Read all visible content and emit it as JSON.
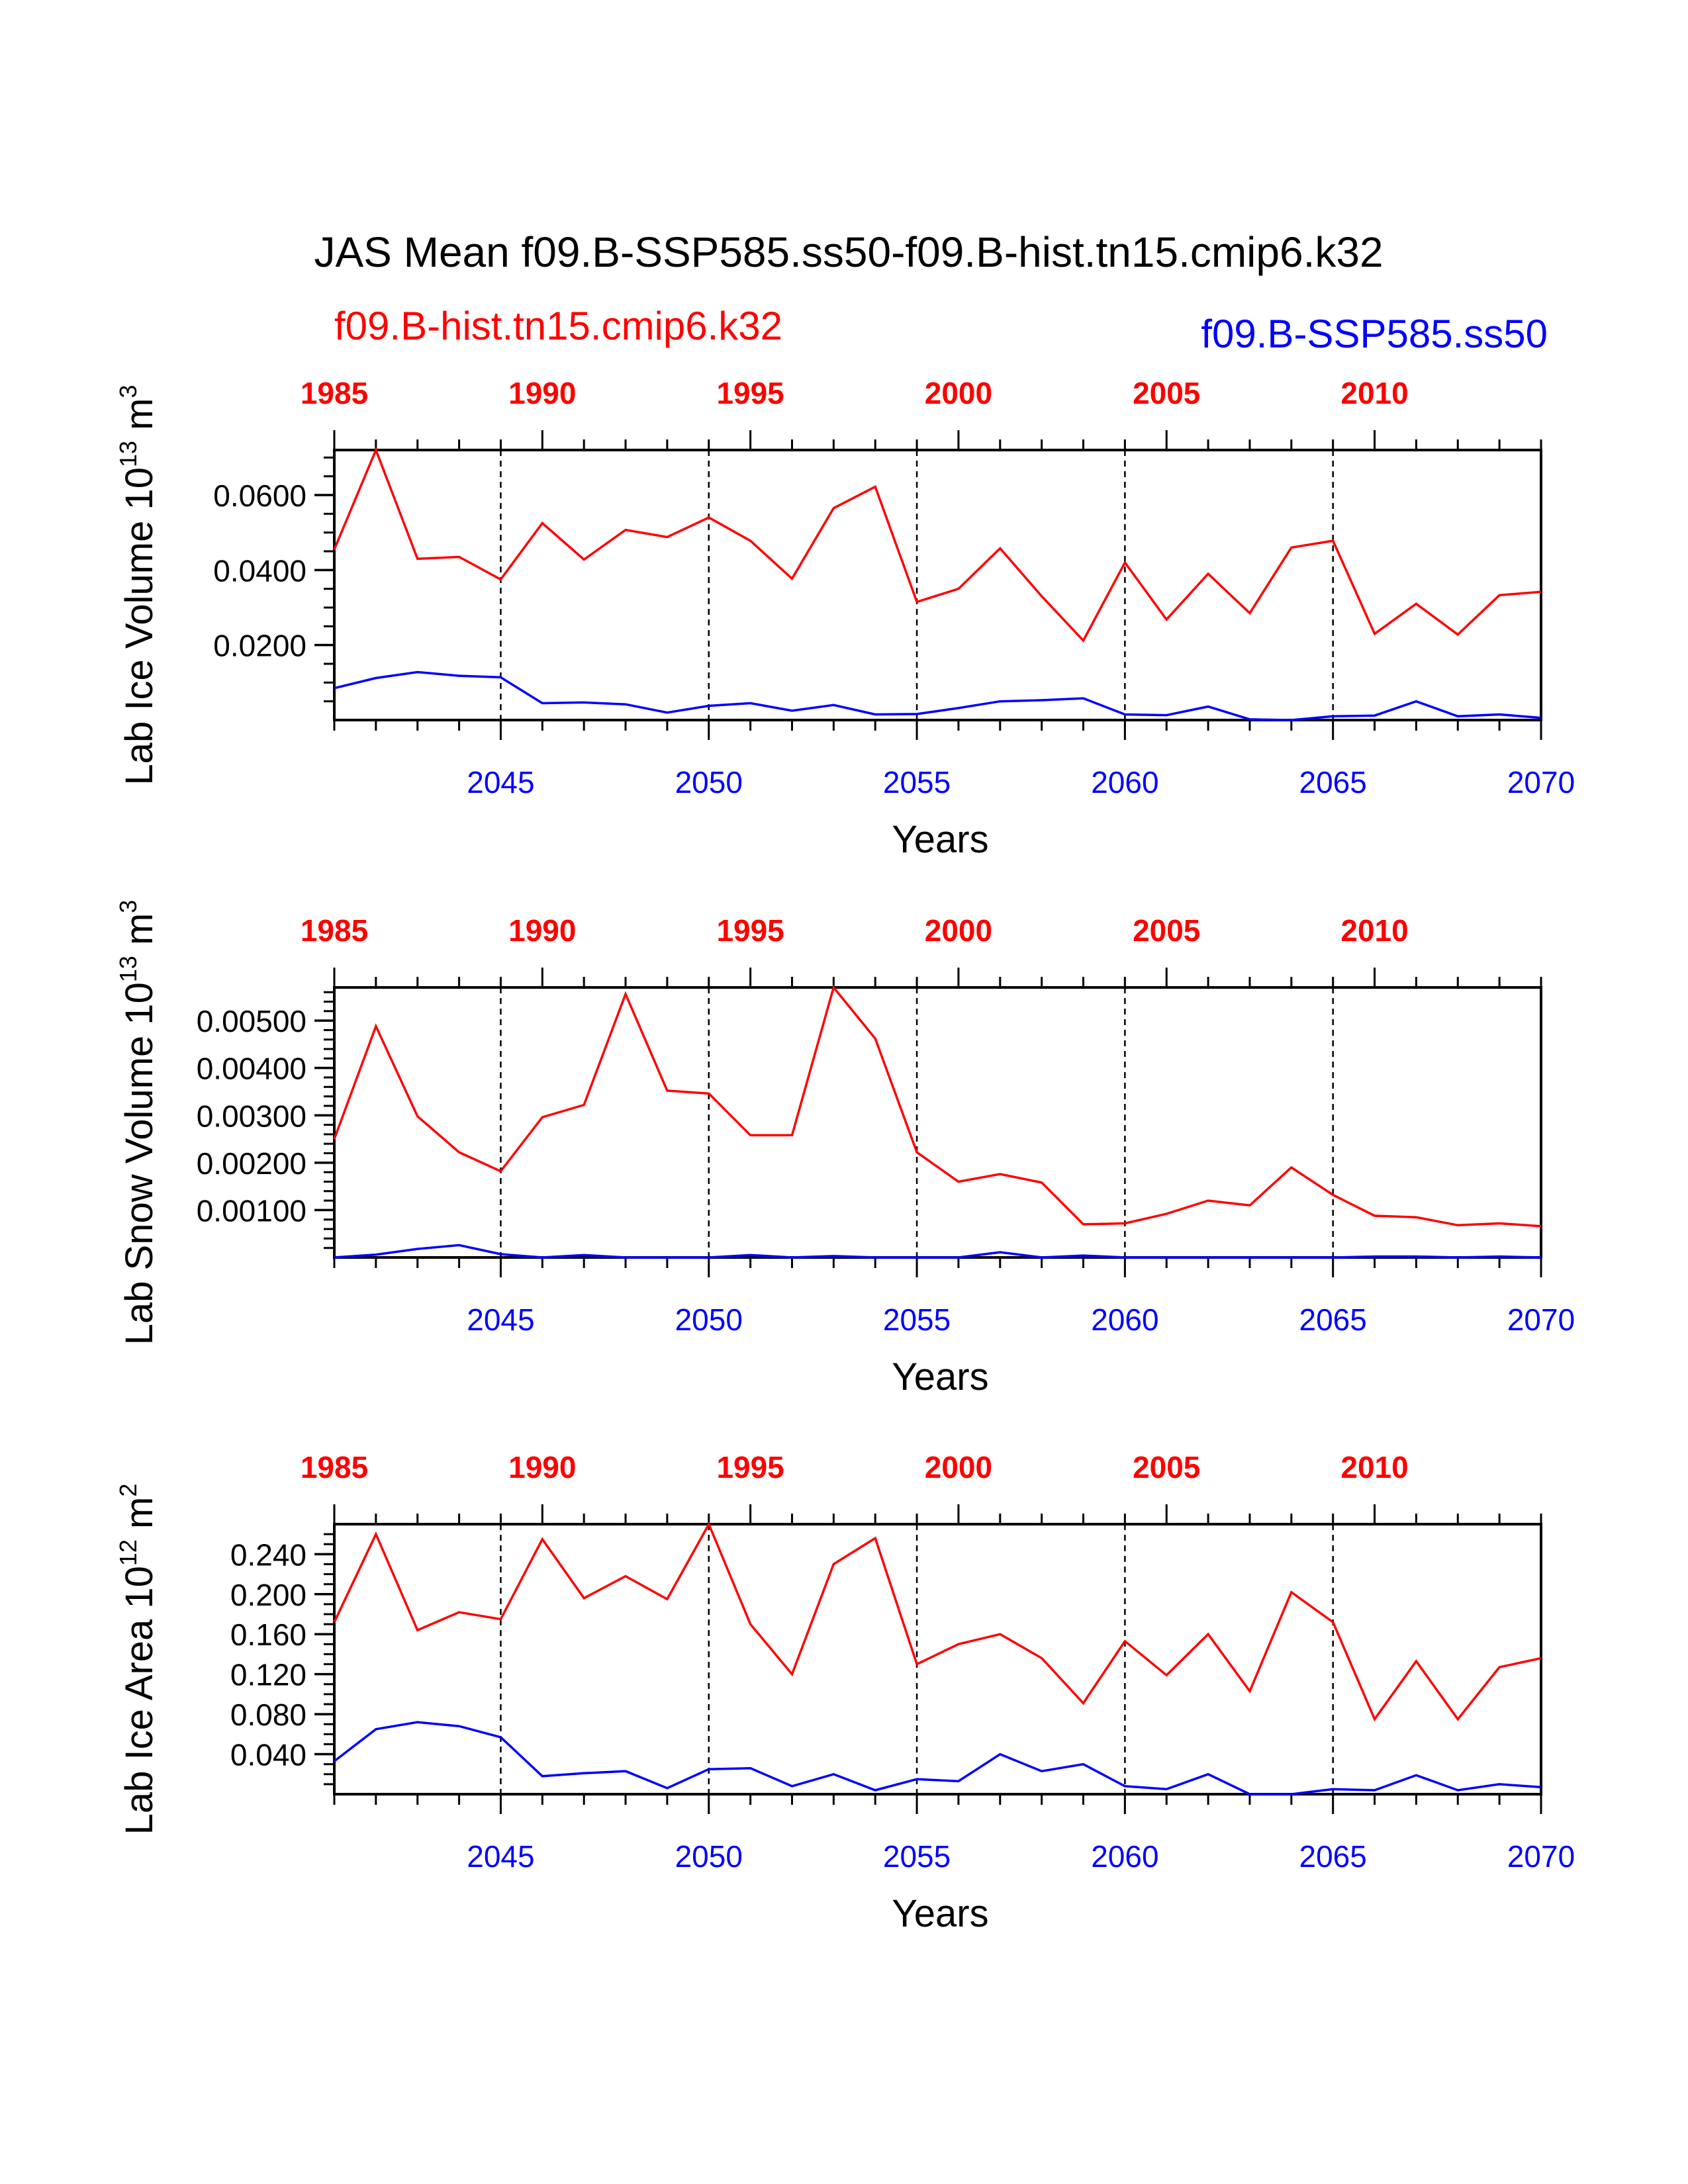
{
  "figure": {
    "title": "JAS Mean f09.B-SSP585.ss50-f09.B-hist.tn15.cmip6.k32",
    "legend_hist": "f09.B-hist.tn15.cmip6.k32",
    "legend_ssp": "f09.B-SSP585.ss50",
    "colors": {
      "hist": "#ff0000",
      "ssp": "#0000ff",
      "axis": "#000000"
    }
  },
  "chart_data": [
    {
      "type": "line",
      "ylabel_main": "Lab Ice Volume 10",
      "ylabel_exp": "13",
      "ylabel_unit": " m",
      "ylabel_unit_exp": "3",
      "xlabel": "Years",
      "xlim_bottom": [
        2041,
        2070
      ],
      "xlim_top": [
        1985,
        2014
      ],
      "ylim": [
        0.0,
        0.072
      ],
      "yticks": [
        0.02,
        0.04,
        0.06
      ],
      "ytick_labels": [
        "0.0200",
        "0.0400",
        "0.0600"
      ],
      "yminor_step": 0.005,
      "bottom_ticks": [
        2045,
        2050,
        2055,
        2060,
        2065,
        2070
      ],
      "bottom_tick_labels": [
        "2045",
        "2050",
        "2055",
        "2060",
        "2065",
        "2070"
      ],
      "top_ticks": [
        1985,
        1990,
        1995,
        2000,
        2005,
        2010
      ],
      "top_tick_labels": [
        "1985",
        "1990",
        "1995",
        "2000",
        "2005",
        "2010"
      ],
      "dashed_at": [
        2045,
        2050,
        2055,
        2060,
        2065
      ],
      "series": [
        {
          "name": "f09.B-hist.tn15.cmip6.k32",
          "axis": "top",
          "color": "#ff0000",
          "x": [
            1985,
            1986,
            1987,
            1988,
            1989,
            1990,
            1991,
            1992,
            1993,
            1994,
            1995,
            1996,
            1997,
            1998,
            1999,
            2000,
            2001,
            2002,
            2003,
            2004,
            2005,
            2006,
            2007,
            2008,
            2009,
            2010,
            2011,
            2012,
            2013,
            2014
          ],
          "y": [
            0.0455,
            0.072,
            0.043,
            0.0435,
            0.0375,
            0.0525,
            0.0428,
            0.0507,
            0.0488,
            0.054,
            0.0478,
            0.0377,
            0.0565,
            0.0622,
            0.0315,
            0.035,
            0.0458,
            0.033,
            0.0212,
            0.042,
            0.0268,
            0.039,
            0.0285,
            0.046,
            0.0478,
            0.023,
            0.031,
            0.0228,
            0.0333,
            0.0342
          ]
        },
        {
          "name": "f09.B-SSP585.ss50",
          "axis": "bottom",
          "color": "#0000ff",
          "x": [
            2041,
            2042,
            2043,
            2044,
            2045,
            2046,
            2047,
            2048,
            2049,
            2050,
            2051,
            2052,
            2053,
            2054,
            2055,
            2056,
            2057,
            2058,
            2059,
            2060,
            2061,
            2062,
            2063,
            2064,
            2065,
            2066,
            2067,
            2068,
            2069,
            2070
          ],
          "y": [
            0.0085,
            0.0112,
            0.0128,
            0.0118,
            0.0114,
            0.0045,
            0.0047,
            0.0042,
            0.002,
            0.0038,
            0.0045,
            0.0025,
            0.004,
            0.0015,
            0.0016,
            0.0032,
            0.005,
            0.0053,
            0.0058,
            0.0015,
            0.0013,
            0.0036,
            0.0002,
            0.0,
            0.001,
            0.0012,
            0.005,
            0.001,
            0.0015,
            0.0006
          ]
        }
      ]
    },
    {
      "type": "line",
      "ylabel_main": "Lab Snow Volume 10",
      "ylabel_exp": "13",
      "ylabel_unit": " m",
      "ylabel_unit_exp": "3",
      "xlabel": "Years",
      "xlim_bottom": [
        2041,
        2070
      ],
      "xlim_top": [
        1985,
        2014
      ],
      "ylim": [
        0.0,
        0.0057
      ],
      "yticks": [
        0.001,
        0.002,
        0.003,
        0.004,
        0.005
      ],
      "ytick_labels": [
        "0.00100",
        "0.00200",
        "0.00300",
        "0.00400",
        "0.00500"
      ],
      "yminor_step": 0.0002,
      "bottom_ticks": [
        2045,
        2050,
        2055,
        2060,
        2065,
        2070
      ],
      "bottom_tick_labels": [
        "2045",
        "2050",
        "2055",
        "2060",
        "2065",
        "2070"
      ],
      "top_ticks": [
        1985,
        1990,
        1995,
        2000,
        2005,
        2010
      ],
      "top_tick_labels": [
        "1985",
        "1990",
        "1995",
        "2000",
        "2005",
        "2010"
      ],
      "dashed_at": [
        2045,
        2050,
        2055,
        2060,
        2065
      ],
      "series": [
        {
          "name": "f09.B-hist.tn15.cmip6.k32",
          "axis": "top",
          "color": "#ff0000",
          "x": [
            1985,
            1986,
            1987,
            1988,
            1989,
            1990,
            1991,
            1992,
            1993,
            1994,
            1995,
            1996,
            1997,
            1998,
            1999,
            2000,
            2001,
            2002,
            2003,
            2004,
            2005,
            2006,
            2007,
            2008,
            2009,
            2010,
            2011,
            2012,
            2013,
            2014
          ],
          "y": [
            0.0025,
            0.00488,
            0.00298,
            0.00222,
            0.00182,
            0.00296,
            0.00322,
            0.00556,
            0.00352,
            0.00346,
            0.00258,
            0.00258,
            0.0057,
            0.00462,
            0.00222,
            0.0016,
            0.00176,
            0.00158,
            0.0007,
            0.00072,
            0.00092,
            0.0012,
            0.0011,
            0.0019,
            0.00132,
            0.00088,
            0.00085,
            0.00068,
            0.00072,
            0.00066
          ]
        },
        {
          "name": "f09.B-SSP585.ss50",
          "axis": "bottom",
          "color": "#0000ff",
          "x": [
            2041,
            2042,
            2043,
            2044,
            2045,
            2046,
            2047,
            2048,
            2049,
            2050,
            2051,
            2052,
            2053,
            2054,
            2055,
            2056,
            2057,
            2058,
            2059,
            2060,
            2061,
            2062,
            2063,
            2064,
            2065,
            2066,
            2067,
            2068,
            2069,
            2070
          ],
          "y": [
            0.0,
            6e-05,
            0.00018,
            0.00026,
            7e-05,
            0.0,
            5e-05,
            0.0,
            0.0,
            0.0,
            5e-05,
            0.0,
            3e-05,
            0.0,
            0.0,
            0.0,
            0.00011,
            0.0,
            4e-05,
            0.0,
            0.0,
            0.0,
            0.0,
            0.0,
            0.0,
            2e-05,
            2e-05,
            0.0,
            2e-05,
            0.0
          ]
        }
      ]
    },
    {
      "type": "line",
      "ylabel_main": "Lab Ice Area 10",
      "ylabel_exp": "12",
      "ylabel_unit": " m",
      "ylabel_unit_exp": "2",
      "xlabel": "Years",
      "xlim_bottom": [
        2041,
        2070
      ],
      "xlim_top": [
        1985,
        2014
      ],
      "ylim": [
        0.0,
        0.27
      ],
      "yticks": [
        0.04,
        0.08,
        0.12,
        0.16,
        0.2,
        0.24
      ],
      "ytick_labels": [
        "0.040",
        "0.080",
        "0.120",
        "0.160",
        "0.200",
        "0.240"
      ],
      "yminor_step": 0.01,
      "bottom_ticks": [
        2045,
        2050,
        2055,
        2060,
        2065,
        2070
      ],
      "bottom_tick_labels": [
        "2045",
        "2050",
        "2055",
        "2060",
        "2065",
        "2070"
      ],
      "top_ticks": [
        1985,
        1990,
        1995,
        2000,
        2005,
        2010
      ],
      "top_tick_labels": [
        "1985",
        "1990",
        "1995",
        "2000",
        "2005",
        "2010"
      ],
      "dashed_at": [
        2045,
        2050,
        2055,
        2060,
        2065
      ],
      "series": [
        {
          "name": "f09.B-hist.tn15.cmip6.k32",
          "axis": "top",
          "color": "#ff0000",
          "x": [
            1985,
            1986,
            1987,
            1988,
            1989,
            1990,
            1991,
            1992,
            1993,
            1994,
            1995,
            1996,
            1997,
            1998,
            1999,
            2000,
            2001,
            2002,
            2003,
            2004,
            2005,
            2006,
            2007,
            2008,
            2009,
            2010,
            2011,
            2012,
            2013,
            2014
          ],
          "y": [
            0.172,
            0.26,
            0.164,
            0.182,
            0.175,
            0.255,
            0.196,
            0.218,
            0.195,
            0.27,
            0.17,
            0.12,
            0.23,
            0.256,
            0.13,
            0.15,
            0.16,
            0.136,
            0.091,
            0.153,
            0.119,
            0.16,
            0.103,
            0.202,
            0.172,
            0.075,
            0.133,
            0.075,
            0.127,
            0.136
          ]
        },
        {
          "name": "f09.B-SSP585.ss50",
          "axis": "bottom",
          "color": "#0000ff",
          "x": [
            2041,
            2042,
            2043,
            2044,
            2045,
            2046,
            2047,
            2048,
            2049,
            2050,
            2051,
            2052,
            2053,
            2054,
            2055,
            2056,
            2057,
            2058,
            2059,
            2060,
            2061,
            2062,
            2063,
            2064,
            2065,
            2066,
            2067,
            2068,
            2069,
            2070
          ],
          "y": [
            0.033,
            0.065,
            0.072,
            0.068,
            0.057,
            0.018,
            0.021,
            0.023,
            0.006,
            0.025,
            0.026,
            0.008,
            0.02,
            0.004,
            0.015,
            0.013,
            0.04,
            0.023,
            0.03,
            0.008,
            0.005,
            0.02,
            0.0,
            0.0,
            0.005,
            0.004,
            0.019,
            0.004,
            0.01,
            0.007
          ]
        }
      ]
    }
  ]
}
